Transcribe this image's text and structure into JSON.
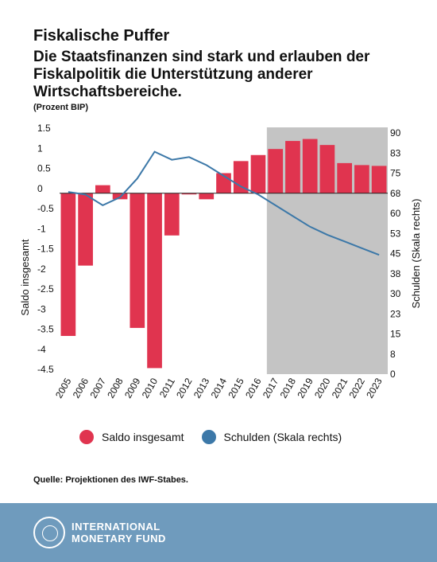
{
  "header": {
    "title": "Fiskalische Puffer",
    "subtitle": "Die Staatsfinanzen sind stark und erlauben der Fiskalpolitik die Unterstützung anderer Wirtschaftsbereiche.",
    "unit": "(Prozent BIP)"
  },
  "chart_data": {
    "type": "bar",
    "categories": [
      "2005",
      "2006",
      "2007",
      "2008",
      "2009",
      "2010",
      "2011",
      "2012",
      "2013",
      "2014",
      "2015",
      "2016",
      "2017",
      "2018",
      "2019",
      "2020",
      "2021",
      "2022",
      "2023"
    ],
    "series": [
      {
        "name": "Saldo insgesamt",
        "type": "bar",
        "axis": "left",
        "color": "#e0344f",
        "values": [
          -3.55,
          -1.8,
          0.2,
          -0.15,
          -3.35,
          -4.35,
          -1.05,
          0.0,
          -0.15,
          0.5,
          0.8,
          0.95,
          1.1,
          1.3,
          1.35,
          1.2,
          0.75,
          0.7,
          0.68
        ]
      },
      {
        "name": "Schulden (Skala rechts)",
        "type": "line",
        "axis": "right",
        "color": "#3c78a8",
        "values": [
          68,
          67,
          63,
          66,
          73,
          83,
          80,
          81,
          78,
          74,
          70,
          67,
          63,
          59,
          55,
          52,
          49.5,
          47,
          44.5
        ]
      }
    ],
    "projection_start": "2017",
    "ylabel_left": "Saldo insgesamt",
    "ylabel_right": "Schulden (Skala rechts)",
    "ylim_left": [
      -4.5,
      1.5
    ],
    "ylim_right": [
      0,
      90
    ],
    "yticks_left": [
      "1.5",
      "1",
      "0.5",
      "0",
      "-0.5",
      "-1",
      "-1.5",
      "-2",
      "-2.5",
      "-3",
      "-3.5",
      "-4",
      "-4.5"
    ],
    "yticks_right": [
      "90",
      "83",
      "75",
      "68",
      "60",
      "53",
      "45",
      "38",
      "30",
      "23",
      "15",
      "8",
      "0"
    ],
    "legend_position": "bottom"
  },
  "legend": {
    "items": [
      {
        "label": "Saldo insgesamt",
        "color": "#e0344f"
      },
      {
        "label": "Schulden (Skala rechts)",
        "color": "#3c78a8"
      }
    ]
  },
  "source": "Quelle: Projektionen des IWF-Stabes.",
  "footer": {
    "logo_line1": "INTERNATIONAL",
    "logo_line2": "MONETARY FUND",
    "bg_color": "#6f9bbd"
  }
}
